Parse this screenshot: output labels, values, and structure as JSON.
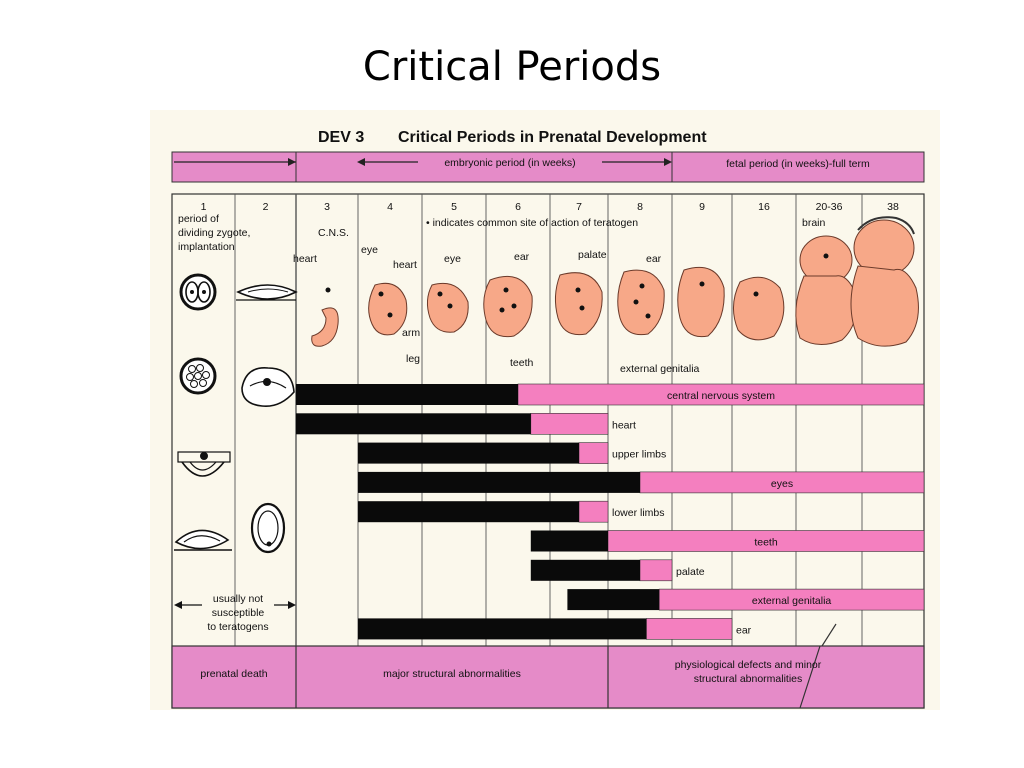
{
  "slide": {
    "title": "Critical Periods"
  },
  "diagram": {
    "code": "DEV 3",
    "heading": "Critical Periods in Prenatal Development",
    "embryonic_label": "embryonic period (in weeks)",
    "fetal_label": "fetal period (in weeks)-full term",
    "legend_note": "• indicates common site of action of teratogen",
    "weeks": [
      "1",
      "2",
      "3",
      "4",
      "5",
      "6",
      "7",
      "8",
      "9",
      "16",
      "20-36",
      "38"
    ],
    "period1_text": [
      "period of",
      "dividing zygote,",
      "implantation"
    ],
    "not_susceptible": [
      "usually not",
      "susceptible",
      "to teratogens"
    ],
    "stage_labels": {
      "cns": "C.N.S.",
      "heart3": "heart",
      "eye4": "eye",
      "heart4": "heart",
      "eye5": "eye",
      "arm": "arm",
      "leg": "leg",
      "ear6": "ear",
      "teeth": "teeth",
      "palate": "palate",
      "ear8": "ear",
      "external_genitalia": "external genitalia",
      "brain": "brain"
    },
    "organs": [
      {
        "name": "central nervous system",
        "black": [
          "3",
          "6.5"
        ],
        "pink": [
          "6.5",
          "38"
        ]
      },
      {
        "name": "heart",
        "black": [
          "3",
          "6.7"
        ],
        "pink": [
          "6.7",
          "8"
        ]
      },
      {
        "name": "upper limbs",
        "black": [
          "4",
          "7.5"
        ],
        "pink": [
          "7.5",
          "8"
        ]
      },
      {
        "name": "eyes",
        "black": [
          "4",
          "8.5"
        ],
        "pink": [
          "8.5",
          "38"
        ]
      },
      {
        "name": "lower limbs",
        "black": [
          "4",
          "7.5"
        ],
        "pink": [
          "7.5",
          "8"
        ]
      },
      {
        "name": "teeth",
        "black": [
          "6.7",
          "8"
        ],
        "pink": [
          "8",
          "38"
        ]
      },
      {
        "name": "palate",
        "black": [
          "6.7",
          "8.5"
        ],
        "pink": [
          "8.5",
          "9"
        ]
      },
      {
        "name": "external genitalia",
        "black": [
          "7.3",
          "8.8"
        ],
        "pink": [
          "8.8",
          "38"
        ]
      },
      {
        "name": "ear",
        "black": [
          "4",
          "8.6"
        ],
        "pink": [
          "8.6",
          "16"
        ]
      }
    ],
    "outcomes": {
      "prenatal_death": "prenatal death",
      "major": "major structural abnormalities",
      "physio_line1": "physiological defects and minor",
      "physio_line2": "structural  abnormalities"
    },
    "colors": {
      "pink": "#f47fbf",
      "black": "#0a0a0a",
      "band": "#e58bc8",
      "skin": "#f7a888",
      "background": "#fbf8ec"
    }
  }
}
